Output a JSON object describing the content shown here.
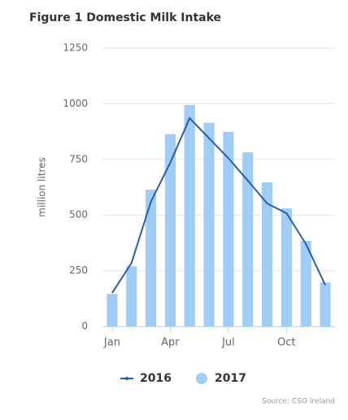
{
  "chart_data": {
    "type": "bar",
    "title": "Figure 1 Domestic Milk Intake",
    "y_label": "million litres",
    "source": "Source: CSO Ireland",
    "categories": [
      "Jan",
      null,
      null,
      "Apr",
      null,
      null,
      "Jul",
      null,
      null,
      "Oct",
      null,
      null
    ],
    "series": [
      {
        "name": "2016",
        "type": "line",
        "color": "#2a5ea8",
        "values": [
          150,
          285,
          560,
          735,
          935,
          845,
          755,
          655,
          552,
          508,
          370,
          185
        ]
      },
      {
        "name": "2017",
        "type": "bar",
        "color": "#9fcdf5",
        "values": [
          146,
          270,
          614,
          863,
          994,
          914,
          874,
          782,
          647,
          530,
          384,
          197
        ]
      }
    ],
    "ylim": [
      0,
      1250
    ],
    "yticks": [
      0,
      250,
      500,
      750,
      1000,
      1250
    ],
    "grid": true
  }
}
